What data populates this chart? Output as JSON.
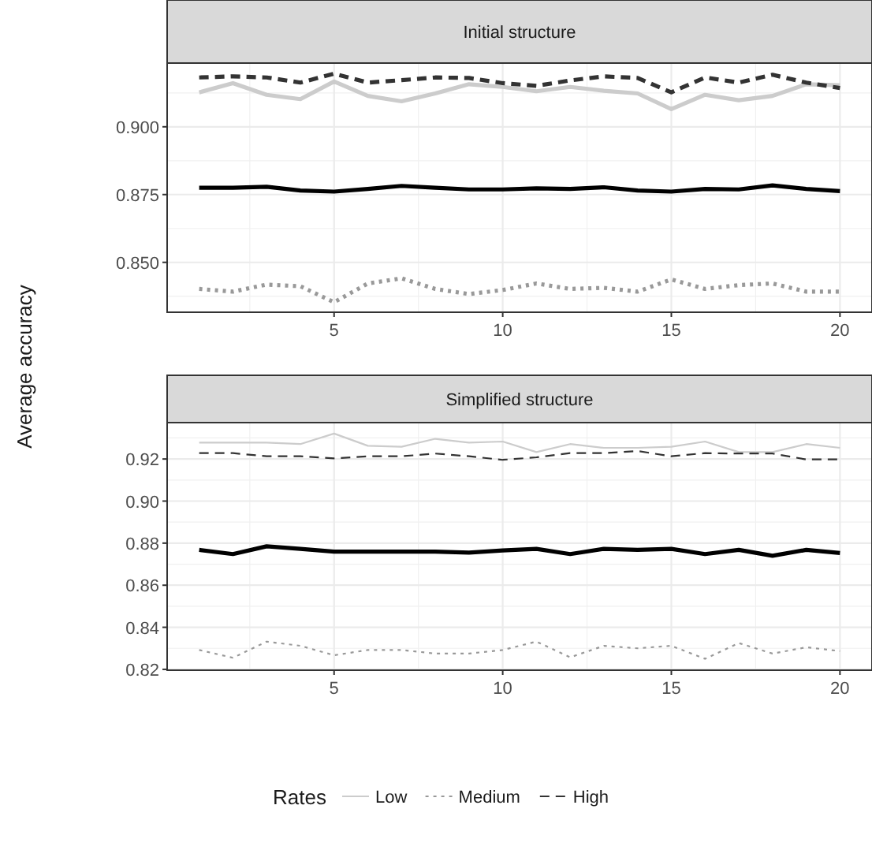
{
  "chart_data": [
    {
      "type": "line",
      "title": "Initial structure",
      "ylabel": "Average accuracy",
      "x": [
        1,
        2,
        3,
        4,
        5,
        6,
        7,
        8,
        9,
        10,
        11,
        12,
        13,
        14,
        15,
        16,
        17,
        18,
        19,
        20
      ],
      "xlim": [
        0.05,
        20.95
      ],
      "xticks": [
        5,
        10,
        15,
        20
      ],
      "ylim": [
        0.8316,
        0.9235
      ],
      "yticks": [
        {
          "value": 0.85,
          "label": "0.850"
        },
        {
          "value": 0.875,
          "label": "0.875"
        },
        {
          "value": 0.9,
          "label": "0.900"
        }
      ],
      "grid": true,
      "series": [
        {
          "color": "#cccccc",
          "line_style": "solid",
          "values": [
            0.9127,
            0.9161,
            0.9118,
            0.9102,
            0.9167,
            0.9114,
            0.9094,
            0.9123,
            0.9157,
            0.9147,
            0.9131,
            0.9147,
            0.9133,
            0.9123,
            0.9065,
            0.9118,
            0.9098,
            0.9114,
            0.9157,
            0.9153
          ]
        },
        {
          "color": "#999999",
          "line_style": "dotted",
          "values": [
            0.8402,
            0.8392,
            0.8418,
            0.8412,
            0.8353,
            0.8422,
            0.8441,
            0.8402,
            0.8383,
            0.8398,
            0.8422,
            0.8402,
            0.8406,
            0.8392,
            0.8437,
            0.8402,
            0.8416,
            0.8422,
            0.8392,
            0.8392
          ]
        },
        {
          "color": "#333333",
          "line_style": "dashed",
          "values": [
            0.9182,
            0.9186,
            0.9182,
            0.9163,
            0.9196,
            0.9163,
            0.9172,
            0.9182,
            0.918,
            0.9161,
            0.9151,
            0.9171,
            0.9186,
            0.918,
            0.9127,
            0.9182,
            0.9163,
            0.9192,
            0.9163,
            0.9143
          ]
        },
        {
          "color": "#000000",
          "line_style": "solid",
          "values": [
            0.8775,
            0.8775,
            0.8779,
            0.8765,
            0.8761,
            0.8771,
            0.8782,
            0.8775,
            0.8769,
            0.8769,
            0.8773,
            0.8771,
            0.8777,
            0.8765,
            0.8761,
            0.8771,
            0.8769,
            0.8784,
            0.8771,
            0.8763
          ]
        }
      ]
    },
    {
      "type": "line",
      "title": "Simplified structure",
      "legend_title": "Rates",
      "x": [
        1,
        2,
        3,
        4,
        5,
        6,
        7,
        8,
        9,
        10,
        11,
        12,
        13,
        14,
        15,
        16,
        17,
        18,
        19,
        20
      ],
      "xlim": [
        0.05,
        20.95
      ],
      "xticks": [
        5,
        10,
        15,
        20
      ],
      "ylim": [
        0.8196,
        0.9373
      ],
      "yticks": [
        {
          "value": 0.82,
          "label": "0.82"
        },
        {
          "value": 0.84,
          "label": "0.84"
        },
        {
          "value": 0.86,
          "label": "0.86"
        },
        {
          "value": 0.88,
          "label": "0.88"
        },
        {
          "value": 0.9,
          "label": "0.90"
        },
        {
          "value": 0.92,
          "label": "0.92"
        }
      ],
      "grid": true,
      "legend": "bottom",
      "series": [
        {
          "name": "Low",
          "color": "#cccccc",
          "line_style": "solid",
          "values": [
            0.9278,
            0.9278,
            0.9278,
            0.9271,
            0.9321,
            0.9263,
            0.9258,
            0.9296,
            0.9278,
            0.9283,
            0.9233,
            0.9271,
            0.9253,
            0.9253,
            0.9258,
            0.9283,
            0.9233,
            0.9233,
            0.9271,
            0.9253
          ]
        },
        {
          "name": "Medium",
          "color": "#999999",
          "line_style": "dotted",
          "values": [
            0.8292,
            0.8255,
            0.8332,
            0.8312,
            0.8267,
            0.8292,
            0.8292,
            0.8275,
            0.8275,
            0.8292,
            0.8332,
            0.8257,
            0.8312,
            0.83,
            0.8312,
            0.825,
            0.8325,
            0.8275,
            0.8305,
            0.8287
          ]
        },
        {
          "name": "High",
          "color": "#333333",
          "line_style": "dashed",
          "values": [
            0.9228,
            0.9228,
            0.9213,
            0.9213,
            0.9203,
            0.9213,
            0.9213,
            0.9226,
            0.9213,
            0.9196,
            0.9208,
            0.9228,
            0.9228,
            0.9238,
            0.9213,
            0.9228,
            0.9226,
            0.9226,
            0.9198,
            0.9198
          ]
        },
        {
          "color": "#000000",
          "line_style": "solid",
          "values": [
            0.8768,
            0.8748,
            0.8785,
            0.8773,
            0.876,
            0.876,
            0.876,
            0.876,
            0.8755,
            0.8765,
            0.8773,
            0.8748,
            0.8773,
            0.8768,
            0.8773,
            0.8748,
            0.8768,
            0.874,
            0.8768,
            0.8753
          ]
        }
      ]
    }
  ]
}
